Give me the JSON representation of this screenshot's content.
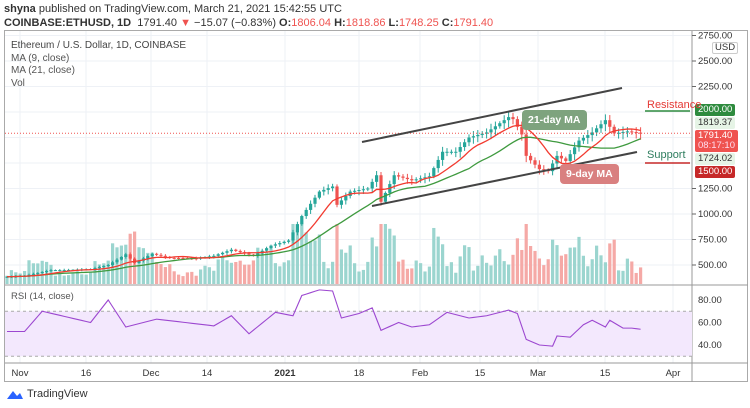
{
  "header": {
    "publisher": "shyna",
    "published_text": "published on TradingView.com, March 21, 2021 15:42:55 UTC",
    "symbol": "COINBASE:ETHUSD, 1D",
    "last": "1791.40",
    "change_arrow": "▼",
    "change": "−15.07 (−0.83%)",
    "o_label": "O:",
    "o": "1806.04",
    "h_label": "H:",
    "h": "1818.86",
    "l_label": "L:",
    "l": "1748.25",
    "c_label": "C:",
    "c": "1791.40"
  },
  "legend": {
    "title": "Ethereum / U.S. Dollar, 1D, COINBASE",
    "ma9": "MA (9, close)",
    "ma21": "MA (21, close)",
    "vol": "Vol"
  },
  "rsi_label": "RSI (14, close)",
  "currency": "USD",
  "price_ticks": [
    "2750.00",
    "2500.00",
    "2250.00",
    "1250.00",
    "1000.00",
    "750.00",
    "500.00"
  ],
  "price_tags": {
    "resistance_level": "2000.00",
    "ma21_value": "1819.37",
    "last_price": "1791.40",
    "countdown": "08:17:10",
    "ma9_value": "1724.02",
    "support_level": "1500.00"
  },
  "rsi_ticks": [
    "80.00",
    "60.00",
    "40.00"
  ],
  "x_ticks": [
    "Nov",
    "16",
    "Dec",
    "14",
    "2021",
    "18",
    "Feb",
    "15",
    "Mar",
    "15",
    "Apr"
  ],
  "annotations": {
    "resistance": "Resistance",
    "support": "Support",
    "ma21": "21-day MA",
    "ma9": "9-day MA"
  },
  "footer": {
    "logo": "TradingView"
  },
  "colors": {
    "up": "#26a69a",
    "down": "#ef5350",
    "ma9": "#f23b30",
    "ma21": "#3f9a3f",
    "rsi": "#9c47d0",
    "resistance_tag": "#2e8b3e",
    "support_tag": "#c62828"
  },
  "chart_data": {
    "type": "candlestick",
    "start_date": "2020-10-28",
    "close_anchors": [
      [
        "2020-10-28",
        385
      ],
      [
        "2020-11-01",
        395
      ],
      [
        "2020-11-07",
        450
      ],
      [
        "2020-11-10",
        450
      ],
      [
        "2020-11-16",
        460
      ],
      [
        "2020-11-20",
        500
      ],
      [
        "2020-11-24",
        605
      ],
      [
        "2020-11-26",
        520
      ],
      [
        "2020-11-30",
        610
      ],
      [
        "2020-12-04",
        570
      ],
      [
        "2020-12-10",
        565
      ],
      [
        "2020-12-14",
        590
      ],
      [
        "2020-12-18",
        650
      ],
      [
        "2020-12-23",
        590
      ],
      [
        "2020-12-27",
        690
      ],
      [
        "2020-12-31",
        740
      ],
      [
        "2021-01-03",
        980
      ],
      [
        "2021-01-07",
        1220
      ],
      [
        "2021-01-10",
        1270
      ],
      [
        "2021-01-11",
        1090
      ],
      [
        "2021-01-14",
        1220
      ],
      [
        "2021-01-18",
        1250
      ],
      [
        "2021-01-20",
        1380
      ],
      [
        "2021-01-21",
        1120
      ],
      [
        "2021-01-24",
        1380
      ],
      [
        "2021-01-28",
        1330
      ],
      [
        "2021-02-01",
        1370
      ],
      [
        "2021-02-04",
        1610
      ],
      [
        "2021-02-07",
        1610
      ],
      [
        "2021-02-10",
        1750
      ],
      [
        "2021-02-14",
        1800
      ],
      [
        "2021-02-19",
        1950
      ],
      [
        "2021-02-20",
        1930
      ],
      [
        "2021-02-22",
        1780
      ],
      [
        "2021-02-23",
        1570
      ],
      [
        "2021-02-26",
        1440
      ],
      [
        "2021-02-28",
        1420
      ],
      [
        "2021-03-02",
        1570
      ],
      [
        "2021-03-04",
        1520
      ],
      [
        "2021-03-07",
        1720
      ],
      [
        "2021-03-10",
        1800
      ],
      [
        "2021-03-13",
        1920
      ],
      [
        "2021-03-15",
        1790
      ],
      [
        "2021-03-18",
        1810
      ],
      [
        "2021-03-21",
        1791.4
      ]
    ],
    "rsi_anchors": [
      [
        "2020-10-28",
        52
      ],
      [
        "2020-11-01",
        52
      ],
      [
        "2020-11-05",
        70
      ],
      [
        "2020-11-16",
        60
      ],
      [
        "2020-11-20",
        80
      ],
      [
        "2020-11-24",
        56
      ],
      [
        "2020-12-01",
        63
      ],
      [
        "2020-12-14",
        57
      ],
      [
        "2020-12-18",
        66
      ],
      [
        "2020-12-22",
        50
      ],
      [
        "2020-12-28",
        69
      ],
      [
        "2021-01-01",
        66
      ],
      [
        "2021-01-03",
        84
      ],
      [
        "2021-01-07",
        89
      ],
      [
        "2021-01-10",
        88
      ],
      [
        "2021-01-12",
        64
      ],
      [
        "2021-01-16",
        68
      ],
      [
        "2021-01-19",
        73
      ],
      [
        "2021-01-21",
        53
      ],
      [
        "2021-01-25",
        60
      ],
      [
        "2021-01-28",
        56
      ],
      [
        "2021-02-01",
        58
      ],
      [
        "2021-02-05",
        69
      ],
      [
        "2021-02-10",
        64
      ],
      [
        "2021-02-14",
        66
      ],
      [
        "2021-02-19",
        71
      ],
      [
        "2021-02-21",
        68
      ],
      [
        "2021-02-23",
        45
      ],
      [
        "2021-02-26",
        40
      ],
      [
        "2021-03-01",
        39
      ],
      [
        "2021-03-02",
        48
      ],
      [
        "2021-03-05",
        47
      ],
      [
        "2021-03-08",
        58
      ],
      [
        "2021-03-10",
        62
      ],
      [
        "2021-03-13",
        56
      ],
      [
        "2021-03-14",
        62
      ],
      [
        "2021-03-17",
        55
      ],
      [
        "2021-03-19",
        55
      ],
      [
        "2021-03-21",
        54
      ]
    ],
    "ylim": [
      250,
      2750
    ],
    "rsi_ylim": [
      20,
      95
    ],
    "rsi_bands": [
      30,
      70
    ],
    "ma_periods": [
      9,
      21
    ],
    "grid": true
  }
}
